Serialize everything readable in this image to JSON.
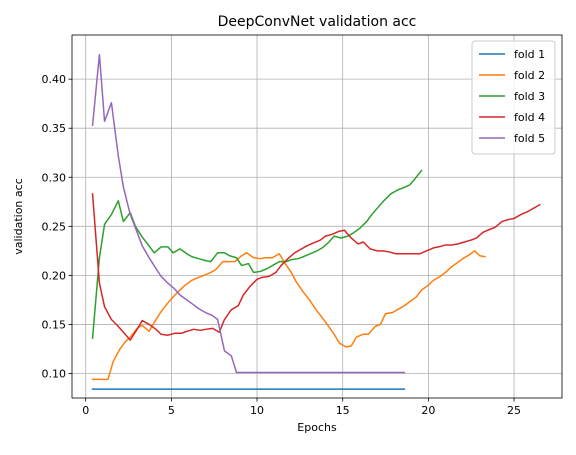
{
  "chart_data": {
    "type": "line",
    "title": "DeepConvNet validation acc",
    "xlabel": "Epochs",
    "ylabel": "validation acc",
    "xlim": [
      -0.8,
      27.8
    ],
    "ylim": [
      0.075,
      0.445
    ],
    "xticks": [
      0,
      5,
      10,
      15,
      20,
      25
    ],
    "yticks": [
      0.1,
      0.15,
      0.2,
      0.25,
      0.3,
      0.35,
      0.4
    ],
    "xtick_labels": [
      "0",
      "5",
      "10",
      "15",
      "20",
      "25"
    ],
    "ytick_labels": [
      "0.10",
      "0.15",
      "0.20",
      "0.25",
      "0.30",
      "0.35",
      "0.40"
    ],
    "grid": true,
    "legend_position": "top-right",
    "series": [
      {
        "name": "fold 1",
        "color": "#1f77b4",
        "points": [
          [
            0.4,
            0.084
          ],
          [
            18.6,
            0.084
          ]
        ]
      },
      {
        "name": "fold 2",
        "color": "#ff7f0e",
        "points": [
          [
            0.4,
            0.094
          ],
          [
            0.7,
            0.094
          ],
          [
            1.0,
            0.094
          ],
          [
            1.3,
            0.094
          ],
          [
            1.6,
            0.112
          ],
          [
            2.0,
            0.125
          ],
          [
            2.3,
            0.132
          ],
          [
            2.6,
            0.137
          ],
          [
            3.0,
            0.146
          ],
          [
            3.3,
            0.149
          ],
          [
            3.7,
            0.143
          ],
          [
            4.0,
            0.152
          ],
          [
            4.4,
            0.163
          ],
          [
            4.8,
            0.172
          ],
          [
            5.1,
            0.178
          ],
          [
            5.5,
            0.185
          ],
          [
            5.8,
            0.19
          ],
          [
            6.2,
            0.195
          ],
          [
            6.6,
            0.198
          ],
          [
            6.9,
            0.2
          ],
          [
            7.3,
            0.203
          ],
          [
            7.6,
            0.206
          ],
          [
            8.0,
            0.214
          ],
          [
            8.4,
            0.214
          ],
          [
            8.7,
            0.214
          ],
          [
            9.1,
            0.22
          ],
          [
            9.4,
            0.223
          ],
          [
            9.8,
            0.218
          ],
          [
            10.2,
            0.217
          ],
          [
            10.5,
            0.218
          ],
          [
            10.9,
            0.218
          ],
          [
            11.3,
            0.222
          ],
          [
            11.6,
            0.213
          ],
          [
            12.0,
            0.203
          ],
          [
            12.3,
            0.193
          ],
          [
            12.7,
            0.183
          ],
          [
            13.1,
            0.174
          ],
          [
            13.4,
            0.166
          ],
          [
            13.8,
            0.157
          ],
          [
            14.1,
            0.15
          ],
          [
            14.5,
            0.14
          ],
          [
            14.8,
            0.131
          ],
          [
            15.2,
            0.127
          ],
          [
            15.5,
            0.128
          ],
          [
            15.8,
            0.137
          ],
          [
            16.2,
            0.14
          ],
          [
            16.5,
            0.14
          ],
          [
            16.9,
            0.148
          ],
          [
            17.2,
            0.15
          ],
          [
            17.5,
            0.161
          ],
          [
            17.9,
            0.162
          ],
          [
            18.2,
            0.165
          ],
          [
            18.6,
            0.169
          ],
          [
            18.9,
            0.173
          ],
          [
            19.3,
            0.178
          ],
          [
            19.6,
            0.185
          ],
          [
            20.0,
            0.19
          ],
          [
            20.3,
            0.195
          ],
          [
            20.7,
            0.199
          ],
          [
            21.0,
            0.203
          ],
          [
            21.3,
            0.208
          ],
          [
            21.7,
            0.213
          ],
          [
            22.0,
            0.217
          ],
          [
            22.4,
            0.221
          ],
          [
            22.7,
            0.225
          ],
          [
            23.0,
            0.22
          ],
          [
            23.3,
            0.219
          ]
        ]
      },
      {
        "name": "fold 3",
        "color": "#2ca02c",
        "points": [
          [
            0.4,
            0.136
          ],
          [
            0.8,
            0.218
          ],
          [
            1.1,
            0.252
          ],
          [
            1.5,
            0.262
          ],
          [
            1.9,
            0.276
          ],
          [
            2.2,
            0.255
          ],
          [
            2.6,
            0.264
          ],
          [
            2.9,
            0.25
          ],
          [
            3.3,
            0.239
          ],
          [
            3.7,
            0.23
          ],
          [
            4.0,
            0.223
          ],
          [
            4.4,
            0.229
          ],
          [
            4.8,
            0.229
          ],
          [
            5.1,
            0.223
          ],
          [
            5.5,
            0.227
          ],
          [
            5.9,
            0.222
          ],
          [
            6.2,
            0.219
          ],
          [
            6.6,
            0.217
          ],
          [
            7.0,
            0.215
          ],
          [
            7.3,
            0.214
          ],
          [
            7.7,
            0.223
          ],
          [
            8.1,
            0.223
          ],
          [
            8.4,
            0.22
          ],
          [
            8.8,
            0.218
          ],
          [
            9.1,
            0.21
          ],
          [
            9.5,
            0.212
          ],
          [
            9.8,
            0.203
          ],
          [
            10.2,
            0.204
          ],
          [
            10.6,
            0.207
          ],
          [
            10.9,
            0.21
          ],
          [
            11.3,
            0.214
          ],
          [
            11.7,
            0.214
          ],
          [
            12.0,
            0.216
          ],
          [
            12.4,
            0.217
          ],
          [
            12.7,
            0.219
          ],
          [
            13.1,
            0.222
          ],
          [
            13.5,
            0.225
          ],
          [
            13.8,
            0.228
          ],
          [
            14.2,
            0.234
          ],
          [
            14.5,
            0.24
          ],
          [
            14.9,
            0.238
          ],
          [
            15.3,
            0.24
          ],
          [
            15.6,
            0.243
          ],
          [
            16.0,
            0.248
          ],
          [
            16.4,
            0.255
          ],
          [
            16.7,
            0.262
          ],
          [
            17.1,
            0.27
          ],
          [
            17.4,
            0.276
          ],
          [
            17.8,
            0.283
          ],
          [
            18.2,
            0.287
          ],
          [
            18.5,
            0.289
          ],
          [
            18.9,
            0.292
          ],
          [
            19.2,
            0.298
          ],
          [
            19.6,
            0.307
          ]
        ]
      },
      {
        "name": "fold 4",
        "color": "#d62728",
        "points": [
          [
            0.4,
            0.283
          ],
          [
            0.8,
            0.192
          ],
          [
            1.1,
            0.168
          ],
          [
            1.5,
            0.155
          ],
          [
            1.9,
            0.148
          ],
          [
            2.2,
            0.142
          ],
          [
            2.6,
            0.134
          ],
          [
            3.0,
            0.145
          ],
          [
            3.3,
            0.154
          ],
          [
            3.7,
            0.15
          ],
          [
            4.1,
            0.145
          ],
          [
            4.4,
            0.14
          ],
          [
            4.8,
            0.139
          ],
          [
            5.2,
            0.141
          ],
          [
            5.6,
            0.141
          ],
          [
            5.9,
            0.143
          ],
          [
            6.3,
            0.145
          ],
          [
            6.7,
            0.144
          ],
          [
            7.0,
            0.145
          ],
          [
            7.4,
            0.146
          ],
          [
            7.8,
            0.142
          ],
          [
            8.1,
            0.155
          ],
          [
            8.5,
            0.165
          ],
          [
            8.9,
            0.169
          ],
          [
            9.2,
            0.18
          ],
          [
            9.6,
            0.189
          ],
          [
            10.0,
            0.196
          ],
          [
            10.3,
            0.198
          ],
          [
            10.7,
            0.199
          ],
          [
            11.1,
            0.203
          ],
          [
            11.4,
            0.21
          ],
          [
            11.8,
            0.217
          ],
          [
            12.2,
            0.223
          ],
          [
            12.5,
            0.226
          ],
          [
            12.9,
            0.23
          ],
          [
            13.3,
            0.233
          ],
          [
            13.7,
            0.236
          ],
          [
            14.0,
            0.24
          ],
          [
            14.4,
            0.242
          ],
          [
            14.8,
            0.245
          ],
          [
            15.1,
            0.246
          ],
          [
            15.5,
            0.238
          ],
          [
            15.9,
            0.232
          ],
          [
            16.2,
            0.234
          ],
          [
            16.6,
            0.227
          ],
          [
            17.0,
            0.225
          ],
          [
            17.3,
            0.225
          ],
          [
            17.7,
            0.224
          ],
          [
            18.1,
            0.222
          ],
          [
            18.4,
            0.222
          ],
          [
            18.8,
            0.222
          ],
          [
            19.2,
            0.222
          ],
          [
            19.5,
            0.222
          ],
          [
            19.9,
            0.225
          ],
          [
            20.3,
            0.228
          ],
          [
            20.6,
            0.229
          ],
          [
            21.0,
            0.231
          ],
          [
            21.4,
            0.231
          ],
          [
            21.7,
            0.232
          ],
          [
            22.1,
            0.234
          ],
          [
            22.5,
            0.236
          ],
          [
            22.8,
            0.238
          ],
          [
            23.2,
            0.244
          ],
          [
            23.6,
            0.247
          ],
          [
            23.9,
            0.249
          ],
          [
            24.3,
            0.255
          ],
          [
            24.7,
            0.257
          ],
          [
            25.0,
            0.258
          ],
          [
            25.4,
            0.262
          ],
          [
            25.8,
            0.265
          ],
          [
            26.1,
            0.268
          ],
          [
            26.5,
            0.272
          ]
        ]
      },
      {
        "name": "fold 5",
        "color": "#9467bd",
        "points": [
          [
            0.4,
            0.353
          ],
          [
            0.8,
            0.425
          ],
          [
            1.1,
            0.357
          ],
          [
            1.5,
            0.376
          ],
          [
            1.9,
            0.322
          ],
          [
            2.2,
            0.29
          ],
          [
            2.6,
            0.262
          ],
          [
            3.0,
            0.244
          ],
          [
            3.3,
            0.23
          ],
          [
            3.7,
            0.218
          ],
          [
            4.1,
            0.207
          ],
          [
            4.4,
            0.199
          ],
          [
            4.8,
            0.192
          ],
          [
            5.2,
            0.186
          ],
          [
            5.5,
            0.18
          ],
          [
            5.9,
            0.175
          ],
          [
            6.3,
            0.17
          ],
          [
            6.6,
            0.166
          ],
          [
            7.0,
            0.162
          ],
          [
            7.4,
            0.159
          ],
          [
            7.7,
            0.155
          ],
          [
            8.1,
            0.123
          ],
          [
            8.5,
            0.118
          ],
          [
            8.8,
            0.101
          ],
          [
            9.2,
            0.101
          ],
          [
            10.0,
            0.101
          ],
          [
            12.0,
            0.101
          ],
          [
            14.0,
            0.101
          ],
          [
            16.0,
            0.101
          ],
          [
            18.6,
            0.101
          ]
        ]
      }
    ]
  }
}
